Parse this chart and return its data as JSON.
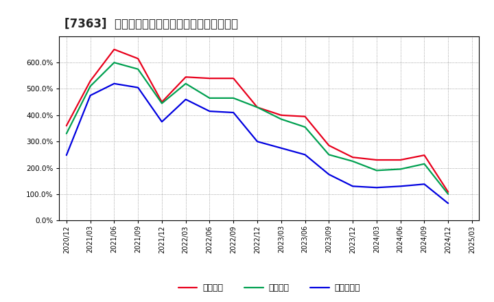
{
  "title": "[7363]  流動比率、当座比率、現預金比率の推移",
  "x_labels": [
    "2020/12",
    "2021/03",
    "2021/06",
    "2021/09",
    "2021/12",
    "2022/03",
    "2022/06",
    "2022/09",
    "2022/12",
    "2023/03",
    "2023/06",
    "2023/09",
    "2023/12",
    "2024/03",
    "2024/06",
    "2024/09",
    "2024/12",
    "2025/03"
  ],
  "ryudo": [
    360,
    530,
    650,
    615,
    450,
    545,
    540,
    540,
    430,
    400,
    395,
    285,
    240,
    230,
    230,
    248,
    108,
    null
  ],
  "toza": [
    330,
    510,
    600,
    575,
    445,
    520,
    465,
    465,
    430,
    385,
    355,
    250,
    225,
    190,
    195,
    215,
    100,
    null
  ],
  "genkin": [
    248,
    475,
    520,
    505,
    375,
    460,
    415,
    410,
    300,
    275,
    250,
    175,
    130,
    125,
    130,
    138,
    65,
    null
  ],
  "line_colors": {
    "ryudo": "#e8001c",
    "toza": "#00a050",
    "genkin": "#0000e0"
  },
  "legend_labels": {
    "ryudo": "流動比率",
    "toza": "当座比率",
    "genkin": "現預金比率"
  },
  "ylim": [
    0,
    700
  ],
  "yticks": [
    0,
    100,
    200,
    300,
    400,
    500,
    600
  ],
  "background_color": "#ffffff",
  "grid_color": "#aaaaaa",
  "title_fontsize": 12
}
